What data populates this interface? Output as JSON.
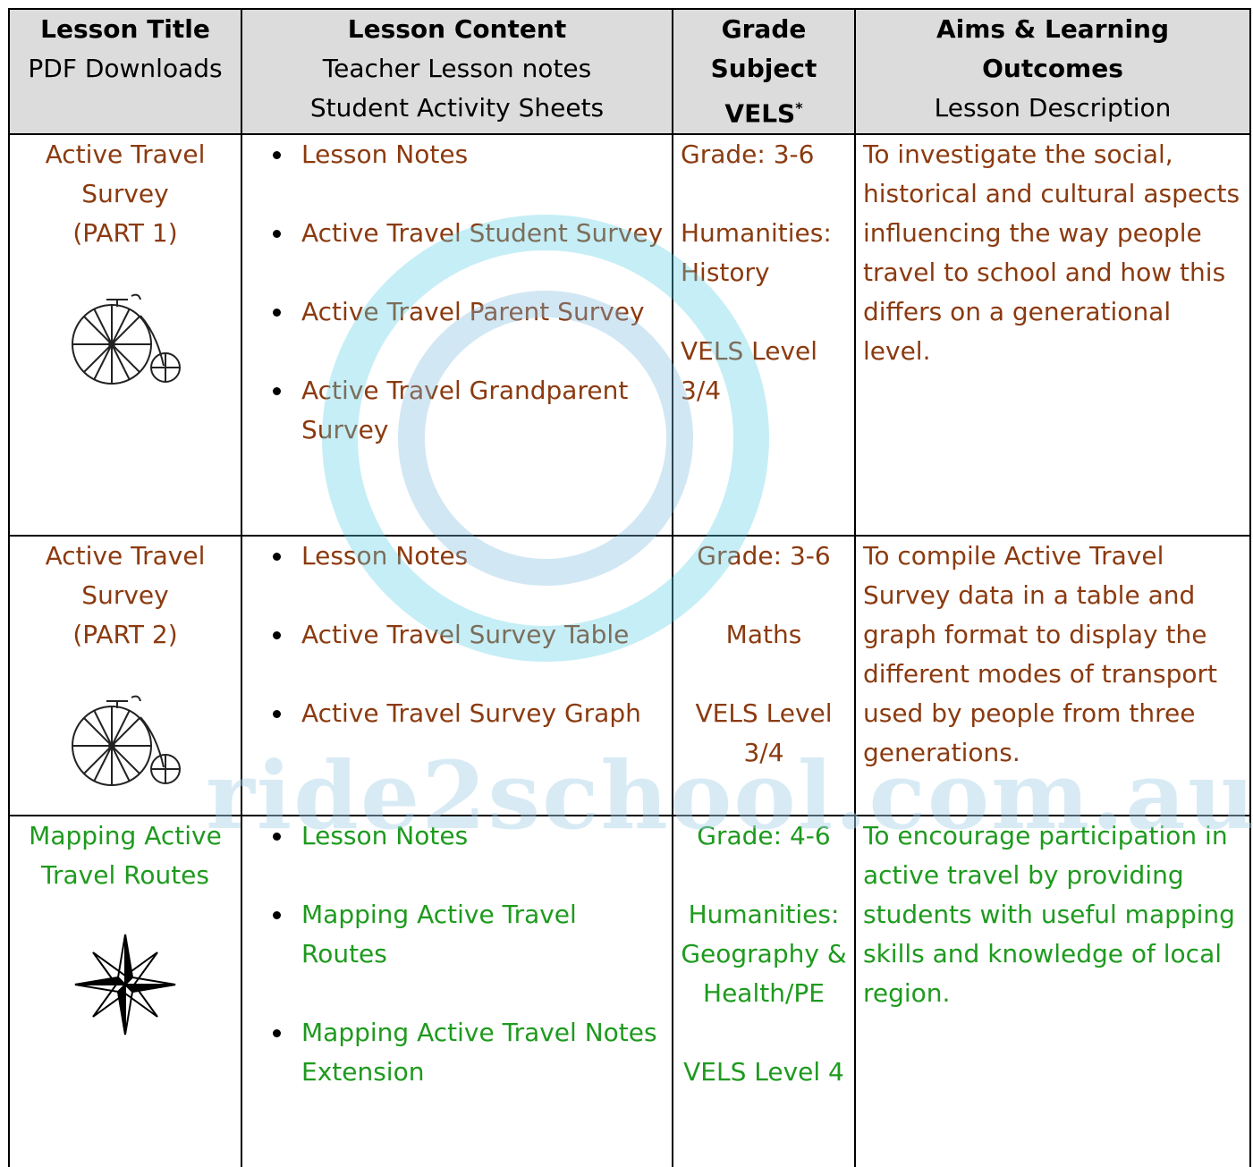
{
  "table": {
    "header": [
      {
        "bold": "Lesson Title",
        "lines": [
          "PDF Downloads"
        ]
      },
      {
        "bold": "Lesson Content",
        "lines": [
          "Teacher Lesson notes",
          "Student Activity Sheets"
        ]
      },
      {
        "bold": "Grade Subject VELS",
        "note_mark": "*",
        "lines": []
      },
      {
        "bold": "Aims & Learning Outcomes",
        "lines": [
          "Lesson Description"
        ]
      }
    ],
    "rows": [
      {
        "color": "#8b3a0f",
        "title": [
          "Active Travel",
          "Survey",
          "(PART 1)"
        ],
        "content": [
          "Lesson Notes",
          "Active Travel Student Survey",
          "Active Travel Parent Survey",
          "Active Travel Grandparent Survey"
        ],
        "grade": [
          "Grade: 3-6",
          "Humanities: History",
          "VELS Level 3/4"
        ],
        "aims": "To investigate the social, historical and cultural aspects influencing the way people travel to school and how this differs on a generational level."
      },
      {
        "color": "#8b3a0f",
        "title": [
          "Active Travel",
          "Survey",
          "(PART 2)"
        ],
        "content": [
          "Lesson Notes",
          "Active Travel Survey Table",
          "Active Travel Survey Graph"
        ],
        "grade": [
          "Grade: 3-6",
          "Maths",
          "VELS Level 3/4"
        ],
        "aims": "To compile Active Travel Survey data in a table and graph format to display the different modes of transport used by people from three generations."
      },
      {
        "color": "#1e9a1e",
        "title": [
          "Mapping Active",
          "Travel Routes"
        ],
        "content": [
          "Lesson Notes",
          "Mapping Active Travel Routes",
          "Mapping Active Travel Notes Extension"
        ],
        "grade": [
          "Grade: 4-6",
          "Humanities: Geography & Health/PE",
          "VELS Level 4"
        ],
        "aims": "To encourage participation in active travel by providing students with useful mapping skills and knowledge of local region."
      }
    ]
  },
  "watermark": "ride2school.com.au"
}
